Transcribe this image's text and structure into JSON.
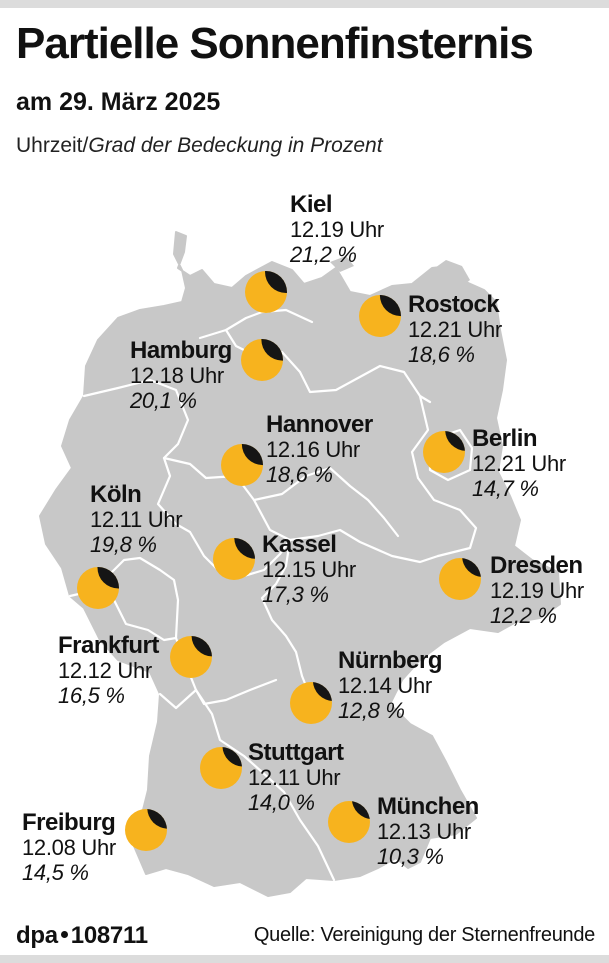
{
  "header": {
    "title": "Partielle Sonnenfinsternis",
    "subtitle": "am 29. März 2025",
    "legend_time": "Uhrzeit/",
    "legend_pct": "Grad der Bedeckung in Prozent"
  },
  "colors": {
    "land": "#c8c8c8",
    "borders": "#ffffff",
    "sun": "#f7b31e",
    "moon": "#151515"
  },
  "cities": [
    {
      "id": "kiel",
      "name": "Kiel",
      "time": "12.19 Uhr",
      "pct": "21,2 %",
      "coverage": 0.212
    },
    {
      "id": "rostock",
      "name": "Rostock",
      "time": "12.21 Uhr",
      "pct": "18,6 %",
      "coverage": 0.186
    },
    {
      "id": "hamburg",
      "name": "Hamburg",
      "time": "12.18 Uhr",
      "pct": "20,1 %",
      "coverage": 0.201
    },
    {
      "id": "hannover",
      "name": "Hannover",
      "time": "12.16 Uhr",
      "pct": "18,6 %",
      "coverage": 0.186
    },
    {
      "id": "berlin",
      "name": "Berlin",
      "time": "12.21 Uhr",
      "pct": "14,7 %",
      "coverage": 0.147
    },
    {
      "id": "koeln",
      "name": "Köln",
      "time": "12.11 Uhr",
      "pct": "19,8 %",
      "coverage": 0.198
    },
    {
      "id": "kassel",
      "name": "Kassel",
      "time": "12.15 Uhr",
      "pct": "17,3 %",
      "coverage": 0.173
    },
    {
      "id": "dresden",
      "name": "Dresden",
      "time": "12.19 Uhr",
      "pct": "12,2 %",
      "coverage": 0.122
    },
    {
      "id": "frankfurt",
      "name": "Frankfurt",
      "time": "12.12 Uhr",
      "pct": "16,5 %",
      "coverage": 0.165
    },
    {
      "id": "nuernberg",
      "name": "Nürnberg",
      "time": "12.14 Uhr",
      "pct": "12,8 %",
      "coverage": 0.128
    },
    {
      "id": "stuttgart",
      "name": "Stuttgart",
      "time": "12.11 Uhr",
      "pct": "14,0 %",
      "coverage": 0.14
    },
    {
      "id": "freiburg",
      "name": "Freiburg",
      "time": "12.08 Uhr",
      "pct": "14,5 %",
      "coverage": 0.145
    },
    {
      "id": "muenchen",
      "name": "München",
      "time": "12.13 Uhr",
      "pct": "10,3 %",
      "coverage": 0.103
    }
  ],
  "footer": {
    "agency": "dpa",
    "graphic_id": "108711",
    "source": "Quelle: Vereinigung der Sternenfreunde"
  }
}
